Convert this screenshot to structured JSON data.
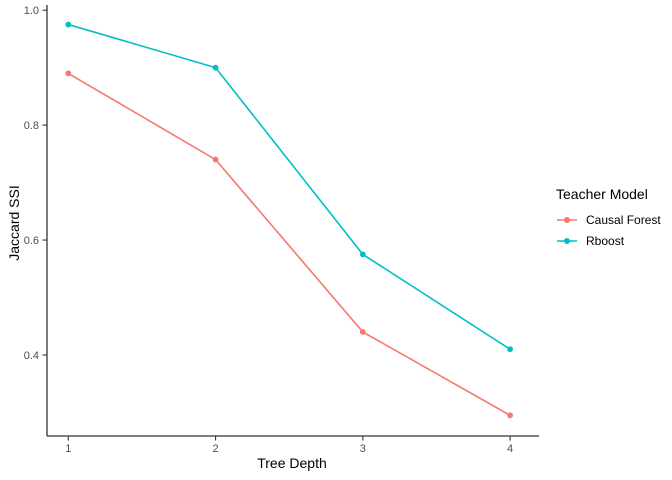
{
  "chart_data": {
    "type": "line",
    "title": "",
    "xlabel": "Tree Depth",
    "ylabel": "Jaccard SSI",
    "legend_title": "Teacher Model",
    "legend_position": "right",
    "grid": false,
    "x": [
      1,
      2,
      3,
      4
    ],
    "xtick_labels": [
      "1",
      "2",
      "3",
      "4"
    ],
    "ytick_labels": [
      "0.4",
      "0.6",
      "0.8",
      "1.0"
    ],
    "yticks": [
      0.4,
      0.6,
      0.8,
      1.0
    ],
    "xlim": [
      1,
      4
    ],
    "ylim": [
      0.259,
      1.009
    ],
    "series": [
      {
        "name": "Causal Forest",
        "color": "#F8766D",
        "values": [
          0.89,
          0.74,
          0.44,
          0.295
        ]
      },
      {
        "name": "Rboost",
        "color": "#00BFC4",
        "values": [
          0.975,
          0.9,
          0.575,
          0.41
        ]
      }
    ],
    "axis_line_color": "#333333",
    "tick_label_color": "#4d4d4d"
  }
}
